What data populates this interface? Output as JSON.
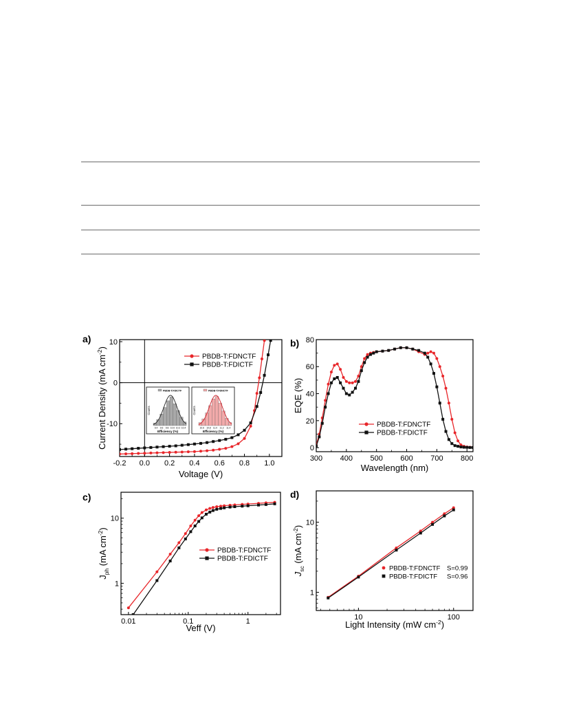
{
  "table_rules": 4,
  "colors": {
    "red": "#e8262a",
    "black": "#111111",
    "inset_gray": "#a9a9a9",
    "inset_pink": "#f2aaaa"
  },
  "chart_data": [
    {
      "id": "a",
      "type": "line",
      "panel_label": "a)",
      "xlabel": "Voltage (V)",
      "ylabel_parts": [
        "Current Density (mA cm",
        "-2",
        ")"
      ],
      "xlim": [
        -0.2,
        1.1
      ],
      "ylim": [
        -18,
        10.5
      ],
      "xticks": [
        -0.2,
        0.0,
        0.2,
        0.4,
        0.6,
        0.8,
        1.0
      ],
      "xtick_labels": [
        "-0.2",
        "0.0",
        "0.2",
        "0.4",
        "0.6",
        "0.8",
        "1.0"
      ],
      "yticks": [
        -10,
        0,
        10
      ],
      "ytick_labels": [
        "-10",
        "0",
        "10"
      ],
      "legend_position": "top-right",
      "series": [
        {
          "name": "PBDB-T:FDNCTF",
          "color": "#e8262a",
          "marker": "circle",
          "x": [
            -0.2,
            -0.15,
            -0.1,
            -0.05,
            0.0,
            0.05,
            0.1,
            0.15,
            0.2,
            0.25,
            0.3,
            0.35,
            0.4,
            0.45,
            0.5,
            0.55,
            0.6,
            0.65,
            0.7,
            0.75,
            0.8,
            0.85,
            0.88,
            0.9,
            0.92,
            0.94,
            0.96
          ],
          "y": [
            -17.4,
            -17.35,
            -17.3,
            -17.25,
            -17.2,
            -17.15,
            -17.1,
            -17.05,
            -17.0,
            -16.95,
            -16.9,
            -16.85,
            -16.8,
            -16.7,
            -16.6,
            -16.45,
            -16.25,
            -16.0,
            -15.6,
            -14.9,
            -13.6,
            -10.6,
            -6.8,
            -2.6,
            1.2,
            5.8,
            10.3
          ]
        },
        {
          "name": "PBDB-T:FDICTF",
          "color": "#111111",
          "marker": "square",
          "x": [
            -0.2,
            -0.15,
            -0.1,
            -0.05,
            0.0,
            0.05,
            0.1,
            0.15,
            0.2,
            0.25,
            0.3,
            0.35,
            0.4,
            0.45,
            0.5,
            0.55,
            0.6,
            0.65,
            0.7,
            0.75,
            0.8,
            0.85,
            0.9,
            0.93,
            0.96,
            0.99,
            1.01
          ],
          "y": [
            -16.3,
            -16.2,
            -16.1,
            -16.0,
            -15.9,
            -15.8,
            -15.7,
            -15.6,
            -15.5,
            -15.4,
            -15.25,
            -15.1,
            -14.95,
            -14.8,
            -14.6,
            -14.35,
            -14.1,
            -13.8,
            -13.4,
            -12.7,
            -11.6,
            -9.8,
            -5.8,
            -2.4,
            1.8,
            6.8,
            10.3
          ]
        }
      ],
      "insets": [
        {
          "legend": "PBDB-T:FDICTF",
          "xlabel": "Efficiency (%)",
          "ylabel": "Counts",
          "tick_labels": [
            "9.4",
            "9.6",
            "9.8",
            "10.0",
            "10.2",
            "10.4"
          ],
          "bar_heights": [
            0.08,
            0.2,
            0.38,
            0.6,
            0.82,
            0.95,
            0.72,
            0.5,
            0.28,
            0.12
          ],
          "color": "#a9a9a9"
        },
        {
          "legend": "PBDB-T:FDNCTF",
          "xlabel": "Efficiency (%)",
          "ylabel": "Counts",
          "tick_labels": [
            "10.6",
            "10.8",
            "11.0",
            "11.2",
            "11.4"
          ],
          "bar_heights": [
            0.1,
            0.22,
            0.42,
            0.66,
            0.88,
            0.96,
            0.74,
            0.48,
            0.24,
            0.1
          ],
          "color": "#f2aaaa"
        }
      ]
    },
    {
      "id": "b",
      "type": "line",
      "panel_label": "b)",
      "xlabel": "Wavelength (nm)",
      "ylabel": "EQE (%)",
      "xlim": [
        300,
        820
      ],
      "ylim": [
        -3,
        80
      ],
      "xticks": [
        300,
        400,
        500,
        600,
        700,
        800
      ],
      "xtick_labels": [
        "300",
        "400",
        "500",
        "600",
        "700",
        "800"
      ],
      "yticks": [
        0,
        20,
        40,
        60,
        80
      ],
      "ytick_labels": [
        "0",
        "20",
        "40",
        "60",
        "80"
      ],
      "legend_position": "bottom-right",
      "series": [
        {
          "name": "PBDB-T:FDNCTF",
          "color": "#e8262a",
          "marker": "circle",
          "x": [
            300,
            310,
            320,
            330,
            340,
            350,
            360,
            370,
            380,
            390,
            400,
            410,
            420,
            430,
            440,
            450,
            460,
            470,
            480,
            490,
            500,
            520,
            540,
            560,
            580,
            600,
            620,
            640,
            660,
            670,
            680,
            690,
            700,
            710,
            720,
            730,
            740,
            750,
            760,
            770,
            780,
            790,
            800,
            810,
            820
          ],
          "y": [
            2,
            10,
            22,
            35,
            47,
            56,
            61,
            62,
            58,
            52,
            49,
            48,
            48,
            49,
            53,
            60,
            66,
            69,
            70,
            70.5,
            71,
            71.5,
            72,
            73,
            74,
            74,
            73,
            71,
            69,
            70,
            71,
            70,
            66,
            60,
            53,
            44,
            33,
            21,
            11,
            5,
            2,
            1,
            0.5,
            0.3,
            0.2
          ]
        },
        {
          "name": "PBDB-T:FDICTF",
          "color": "#111111",
          "marker": "square",
          "x": [
            300,
            310,
            320,
            330,
            340,
            350,
            360,
            370,
            380,
            390,
            400,
            410,
            420,
            430,
            440,
            450,
            460,
            470,
            480,
            490,
            500,
            520,
            540,
            560,
            580,
            600,
            620,
            640,
            660,
            670,
            680,
            690,
            700,
            710,
            720,
            730,
            740,
            750,
            760,
            770,
            780,
            790,
            800,
            810,
            820
          ],
          "y": [
            1,
            8,
            18,
            30,
            40,
            48,
            51,
            52,
            48,
            44,
            40,
            39,
            41,
            44,
            49,
            57,
            63,
            67,
            69,
            70,
            71,
            71.5,
            72,
            73,
            74,
            74,
            73,
            72,
            70,
            67,
            62,
            55,
            45,
            33,
            21,
            12,
            6,
            3,
            1.5,
            1,
            0.5,
            0.3,
            0.2,
            0.1,
            0.1
          ]
        }
      ]
    },
    {
      "id": "c",
      "type": "line",
      "panel_label": "c)",
      "xlabel": "Veff (V)",
      "ylabel_parts": [
        "J",
        "ph",
        "  (mA cm",
        "-2",
        ")"
      ],
      "x_scale": "log",
      "y_scale": "log",
      "xlim": [
        0.0075,
        3.5
      ],
      "ylim": [
        0.33,
        25
      ],
      "xticks": [
        0.01,
        0.1,
        1
      ],
      "xtick_labels": [
        "0.01",
        "0.1",
        "1"
      ],
      "yticks": [
        1,
        10
      ],
      "ytick_labels": [
        "1",
        "10"
      ],
      "legend_position": "middle-right",
      "series": [
        {
          "name": "PBDB-T:FDNCTF",
          "color": "#e8262a",
          "marker": "circle",
          "x": [
            0.01,
            0.03,
            0.05,
            0.07,
            0.09,
            0.11,
            0.13,
            0.15,
            0.17,
            0.2,
            0.23,
            0.26,
            0.3,
            0.35,
            0.4,
            0.5,
            0.6,
            0.8,
            1.0,
            1.5,
            2.0,
            2.8
          ],
          "y": [
            0.42,
            1.5,
            2.8,
            4.2,
            5.8,
            7.6,
            9.3,
            10.9,
            12.2,
            13.4,
            14.1,
            14.6,
            15.0,
            15.3,
            15.5,
            15.8,
            16.0,
            16.3,
            16.5,
            16.9,
            17.2,
            17.5
          ]
        },
        {
          "name": "PBDB-T:FDICTF",
          "color": "#111111",
          "marker": "square",
          "x": [
            0.012,
            0.03,
            0.05,
            0.07,
            0.09,
            0.11,
            0.13,
            0.15,
            0.17,
            0.2,
            0.23,
            0.26,
            0.3,
            0.35,
            0.4,
            0.5,
            0.6,
            0.8,
            1.0,
            1.5,
            2.0,
            2.8
          ],
          "y": [
            0.33,
            1.1,
            2.2,
            3.5,
            4.8,
            6.2,
            7.6,
            8.9,
            10.1,
            11.5,
            12.4,
            13.1,
            13.7,
            14.1,
            14.4,
            14.8,
            15.0,
            15.3,
            15.5,
            15.9,
            16.2,
            16.6
          ]
        }
      ]
    },
    {
      "id": "d",
      "type": "scatter",
      "panel_label": "d)",
      "xlabel_parts": [
        "Light Intensity (mW cm",
        "-2",
        ")"
      ],
      "ylabel_parts": [
        "J",
        "sc",
        "  (mA cm",
        "-2",
        ")"
      ],
      "x_scale": "log",
      "y_scale": "log",
      "xlim": [
        3.6,
        160
      ],
      "ylim": [
        0.55,
        28
      ],
      "xticks": [
        10,
        100
      ],
      "xtick_labels": [
        "10",
        "100"
      ],
      "yticks": [
        1,
        10
      ],
      "ytick_labels": [
        "1",
        "10"
      ],
      "legend_position": "bottom-right",
      "series": [
        {
          "name": "PBDB-T:FDNCTF",
          "slope_label": "S=0.99",
          "color": "#e8262a",
          "marker": "circle",
          "x": [
            4.8,
            10,
            25,
            45,
            60,
            80,
            100
          ],
          "y": [
            0.85,
            1.7,
            4.3,
            7.5,
            10.0,
            13.2,
            16.1
          ]
        },
        {
          "name": "PBDB-T:FDICTF",
          "slope_label": "S=0.96",
          "color": "#111111",
          "marker": "square",
          "x": [
            4.8,
            10,
            25,
            45,
            60,
            80,
            100
          ],
          "y": [
            0.83,
            1.65,
            4.0,
            7.0,
            9.3,
            12.3,
            15.0
          ]
        }
      ]
    }
  ]
}
